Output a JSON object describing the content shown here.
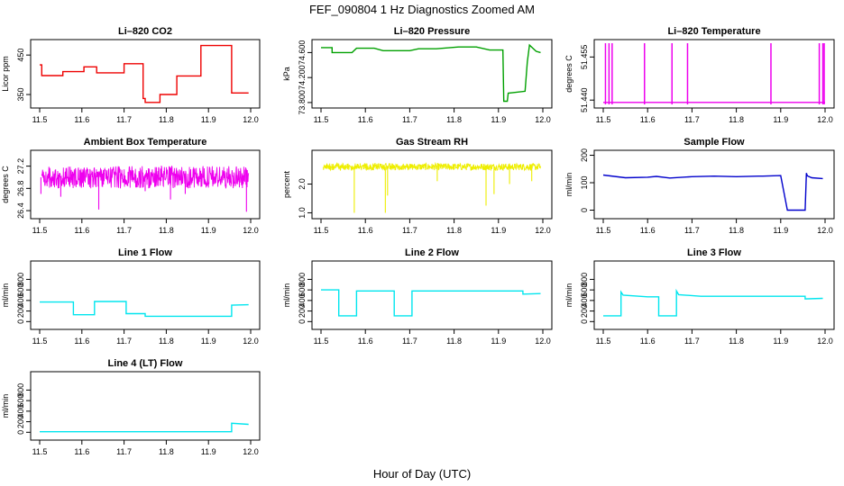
{
  "figure_title": "FEF_090804  1 Hz Diagnostics Zoomed AM",
  "x_axis_label": "Hour of Day (UTC)",
  "chart_data": [
    {
      "type": "line",
      "title": "Li–820 CO2",
      "ylabel": "Licor ppm",
      "color": "#ee0000",
      "xlim": [
        11.5,
        12.0
      ],
      "xticks": [
        11.5,
        11.6,
        11.7,
        11.8,
        11.9,
        12.0
      ],
      "ylim": [
        325,
        480
      ],
      "yticks": [
        350,
        450
      ],
      "series": [
        {
          "x": [
            11.5,
            11.505,
            11.505,
            11.555,
            11.555,
            11.605,
            11.605,
            11.635,
            11.635,
            11.7,
            11.7,
            11.745,
            11.745,
            11.75,
            11.75,
            11.785,
            11.785,
            11.825,
            11.825,
            11.882,
            11.882,
            11.955,
            11.955,
            11.995
          ],
          "y": [
            425,
            425,
            398,
            398,
            408,
            408,
            420,
            420,
            405,
            405,
            428,
            428,
            340,
            340,
            330,
            330,
            350,
            350,
            397,
            397,
            474,
            474,
            354,
            354
          ]
        }
      ]
    },
    {
      "type": "line",
      "title": "Li–820 Pressure",
      "ylabel": "kPa",
      "color": "#00a000",
      "xlim": [
        11.5,
        12.0
      ],
      "xticks": [
        11.5,
        11.6,
        11.7,
        11.8,
        11.9,
        12.0
      ],
      "ylim": [
        73.77,
        74.75
      ],
      "yticks": [
        73.8,
        74.2,
        74.6
      ],
      "series": [
        {
          "x": [
            11.5,
            11.525,
            11.525,
            11.57,
            11.58,
            11.62,
            11.64,
            11.7,
            11.72,
            11.76,
            11.81,
            11.85,
            11.88,
            11.91,
            11.912,
            11.92,
            11.922,
            11.96,
            11.965,
            11.97,
            11.985,
            11.995
          ],
          "y": [
            74.68,
            74.68,
            74.6,
            74.6,
            74.67,
            74.67,
            74.63,
            74.63,
            74.66,
            74.66,
            74.69,
            74.69,
            74.64,
            74.64,
            73.82,
            73.82,
            73.95,
            73.98,
            74.45,
            74.72,
            74.62,
            74.6
          ]
        }
      ]
    },
    {
      "type": "line",
      "title": "Li–820 Temperature",
      "ylabel": "degrees C",
      "color": "#ee00ee",
      "xlim": [
        11.5,
        12.0
      ],
      "xticks": [
        11.5,
        11.6,
        11.7,
        11.8,
        11.9,
        12.0
      ],
      "ylim": [
        51.4385,
        51.4598
      ],
      "yticks": [
        51.44,
        51.455
      ],
      "spikes": [
        11.505,
        11.513,
        11.52,
        11.593,
        11.655,
        11.69,
        11.878,
        11.987,
        11.995,
        11.998
      ],
      "series": [
        {
          "x": [
            11.5,
            12.0
          ],
          "y": [
            51.4392,
            51.4392
          ]
        }
      ]
    },
    {
      "type": "line",
      "title": "Ambient Box Temperature",
      "ylabel": "degrees C",
      "color": "#ee00ee",
      "xlim": [
        11.5,
        12.0
      ],
      "xticks": [
        11.5,
        11.6,
        11.7,
        11.8,
        11.9,
        12.0
      ],
      "ylim": [
        26.32,
        27.42
      ],
      "yticks": [
        26.4,
        26.8,
        27.2
      ],
      "noise": {
        "base": 27.0,
        "amp": 0.2,
        "dips": [
          [
            11.503,
            26.7
          ],
          [
            11.55,
            26.65
          ],
          [
            11.64,
            26.42
          ],
          [
            11.75,
            26.75
          ],
          [
            11.81,
            26.6
          ],
          [
            11.845,
            26.7
          ],
          [
            11.99,
            26.38
          ]
        ]
      }
    },
    {
      "type": "line",
      "title": "Gas Stream RH",
      "ylabel": "percent",
      "color": "#eeee00",
      "xlim": [
        11.5,
        12.0
      ],
      "xticks": [
        11.5,
        11.6,
        11.7,
        11.8,
        11.9,
        12.0
      ],
      "ylim": [
        0.92,
        3.05
      ],
      "yticks": [
        1.0,
        2.0
      ],
      "noise": {
        "base": 2.6,
        "amp": 0.12,
        "dips": [
          [
            11.575,
            1.0
          ],
          [
            11.645,
            1.0
          ],
          [
            11.65,
            1.6
          ],
          [
            11.762,
            2.1
          ],
          [
            11.872,
            1.25
          ],
          [
            11.89,
            1.65
          ],
          [
            11.925,
            2.0
          ],
          [
            11.975,
            2.1
          ]
        ]
      }
    },
    {
      "type": "line",
      "title": "Sample Flow",
      "ylabel": "ml/min",
      "color": "#0000cc",
      "xlim": [
        11.5,
        12.0
      ],
      "xticks": [
        11.5,
        11.6,
        11.7,
        11.8,
        11.9,
        12.0
      ],
      "ylim": [
        -18,
        205
      ],
      "yticks": [
        0,
        100,
        200
      ],
      "series": [
        {
          "x": [
            11.5,
            11.55,
            11.6,
            11.62,
            11.65,
            11.7,
            11.75,
            11.8,
            11.85,
            11.86,
            11.9,
            11.915,
            11.955,
            11.958,
            11.96,
            11.97,
            11.995
          ],
          "y": [
            128,
            118,
            120,
            123,
            117,
            122,
            124,
            122,
            124,
            124,
            126,
            0,
            0,
            135,
            125,
            118,
            115
          ]
        }
      ]
    },
    {
      "type": "line",
      "title": "Line 1 Flow",
      "ylabel": "ml/min",
      "color": "#00e5ee",
      "xlim": [
        11.5,
        12.0
      ],
      "xticks": [
        11.5,
        11.6,
        11.7,
        11.8,
        11.9,
        12.0
      ],
      "ylim": [
        -80,
        1080
      ],
      "yticks": [
        0,
        200,
        400,
        600,
        800
      ],
      "series": [
        {
          "x": [
            11.5,
            11.58,
            11.58,
            11.63,
            11.63,
            11.705,
            11.705,
            11.75,
            11.75,
            11.955,
            11.955,
            11.995
          ],
          "y": [
            370,
            370,
            130,
            130,
            380,
            380,
            150,
            150,
            100,
            100,
            310,
            320
          ]
        }
      ]
    },
    {
      "type": "line",
      "title": "Line 2 Flow",
      "ylabel": "ml/min",
      "color": "#00e5ee",
      "xlim": [
        11.5,
        12.0
      ],
      "xticks": [
        11.5,
        11.6,
        11.7,
        11.8,
        11.9,
        12.0
      ],
      "ylim": [
        -80,
        1080
      ],
      "yticks": [
        0,
        200,
        400,
        600,
        800
      ],
      "series": [
        {
          "x": [
            11.5,
            11.54,
            11.54,
            11.58,
            11.58,
            11.665,
            11.665,
            11.705,
            11.705,
            11.955,
            11.955,
            11.995
          ],
          "y": [
            600,
            600,
            110,
            110,
            580,
            580,
            110,
            110,
            580,
            580,
            520,
            530
          ]
        }
      ]
    },
    {
      "type": "line",
      "title": "Line 3 Flow",
      "ylabel": "ml/min",
      "color": "#00e5ee",
      "xlim": [
        11.5,
        12.0
      ],
      "xticks": [
        11.5,
        11.6,
        11.7,
        11.8,
        11.9,
        12.0
      ],
      "ylim": [
        -80,
        1080
      ],
      "yticks": [
        0,
        200,
        400,
        600,
        800
      ],
      "series": [
        {
          "x": [
            11.5,
            11.54,
            11.54,
            11.545,
            11.6,
            11.625,
            11.625,
            11.665,
            11.665,
            11.67,
            11.72,
            11.955,
            11.955,
            11.995
          ],
          "y": [
            110,
            110,
            560,
            500,
            470,
            470,
            110,
            110,
            580,
            510,
            480,
            480,
            430,
            440
          ]
        }
      ]
    },
    {
      "type": "line",
      "title": "Line 4 (LT) Flow",
      "ylabel": "ml/min",
      "color": "#00e5ee",
      "xlim": [
        11.5,
        12.0
      ],
      "xticks": [
        11.5,
        11.6,
        11.7,
        11.8,
        11.9,
        12.0
      ],
      "ylim": [
        -80,
        1080
      ],
      "yticks": [
        0,
        200,
        400,
        600,
        800
      ],
      "series": [
        {
          "x": [
            11.5,
            11.955,
            11.955,
            11.995
          ],
          "y": [
            10,
            10,
            170,
            150
          ]
        }
      ]
    }
  ]
}
